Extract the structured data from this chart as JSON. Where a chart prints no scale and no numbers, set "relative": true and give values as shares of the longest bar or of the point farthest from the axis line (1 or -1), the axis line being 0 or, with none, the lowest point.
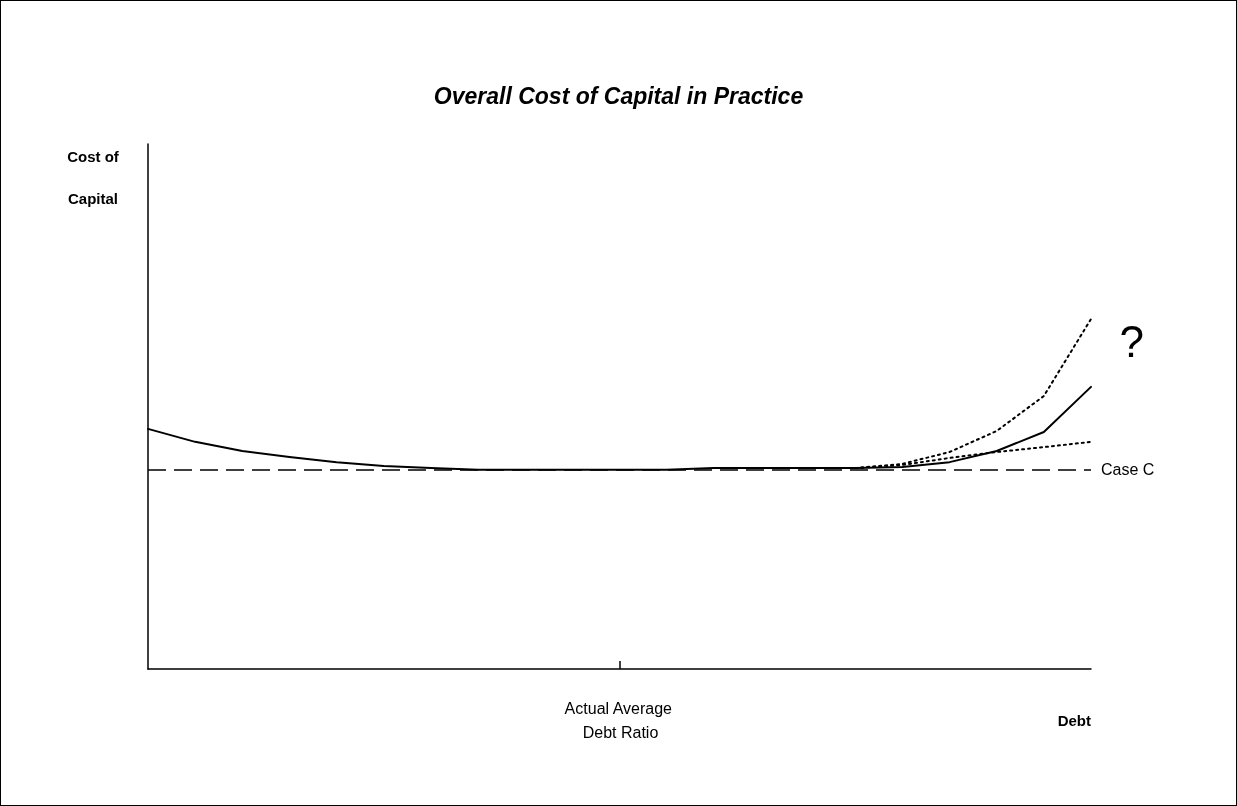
{
  "chart_data": {
    "type": "line",
    "title": "Overall Cost of Capital in Practice",
    "xlabel": "Debt",
    "relative": true,
    "grid": false,
    "marker": "none",
    "categories": [
      null,
      null,
      null,
      null,
      null,
      null,
      null,
      null,
      null,
      null,
      null,
      null,
      null,
      null,
      null,
      null,
      null,
      null,
      null,
      null,
      null
    ],
    "series": [
      {
        "color": "#000000",
        "line_style": "solid",
        "values": [
          0.686,
          0.649,
          0.623,
          0.606,
          0.591,
          0.58,
          0.574,
          0.569,
          0.569,
          0.569,
          0.569,
          0.569,
          0.574,
          0.574,
          0.574,
          0.574,
          0.577,
          0.591,
          0.623,
          0.677,
          0.806
        ]
      },
      {
        "color": "#000000",
        "line_style": "dotted",
        "values": [
          null,
          null,
          null,
          null,
          null,
          null,
          null,
          null,
          null,
          null,
          null,
          null,
          null,
          null,
          null,
          0.574,
          0.586,
          0.62,
          0.68,
          0.78,
          1.0
        ]
      },
      {
        "color": "#000000",
        "line_style": "dotted",
        "values": [
          null,
          null,
          null,
          null,
          null,
          null,
          null,
          null,
          null,
          null,
          null,
          null,
          null,
          null,
          null,
          0.574,
          0.583,
          0.603,
          0.62,
          0.634,
          0.649
        ]
      }
    ],
    "ref_lines": [
      {
        "axis": "y",
        "value": 0.569,
        "label": "Case C",
        "color": "#000000",
        "line_style": "dashed"
      }
    ],
    "annotations": [
      "?",
      "Actual Average Debt Ratio",
      "Cost of Capital"
    ]
  }
}
